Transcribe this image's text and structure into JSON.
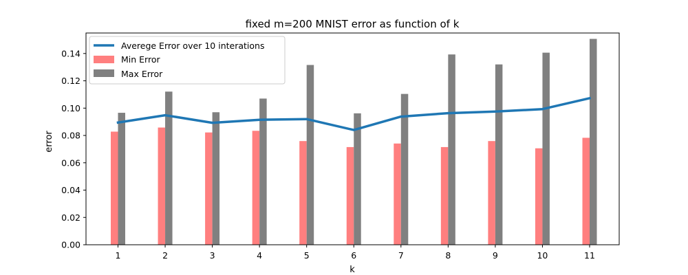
{
  "chart_data": {
    "type": "bar",
    "title": "fixed m=200 MNIST error as function of k",
    "xlabel": "k",
    "ylabel": "error",
    "categories": [
      "1",
      "2",
      "3",
      "4",
      "5",
      "6",
      "7",
      "8",
      "9",
      "10",
      "11"
    ],
    "ylim": [
      0,
      0.155
    ],
    "yticks": [
      "0.00",
      "0.02",
      "0.04",
      "0.06",
      "0.08",
      "0.10",
      "0.12",
      "0.14"
    ],
    "grid": false,
    "legend_position": "top-left",
    "series": [
      {
        "name": "Averege Error over 10 interations",
        "type": "line",
        "color": "#1f77b4",
        "values": [
          0.0895,
          0.0948,
          0.0893,
          0.0915,
          0.092,
          0.084,
          0.0938,
          0.0963,
          0.0975,
          0.0993,
          0.1073
        ]
      },
      {
        "name": "Min Error",
        "type": "bar",
        "color": "#ff7f7f",
        "values": [
          0.0828,
          0.0858,
          0.0822,
          0.0834,
          0.0759,
          0.0715,
          0.0741,
          0.0715,
          0.0759,
          0.0706,
          0.0783
        ]
      },
      {
        "name": "Max Error",
        "type": "bar",
        "color": "#808080",
        "values": [
          0.0966,
          0.1121,
          0.097,
          0.107,
          0.1316,
          0.0962,
          0.1104,
          0.1393,
          0.132,
          0.1406,
          0.1507
        ]
      }
    ]
  }
}
